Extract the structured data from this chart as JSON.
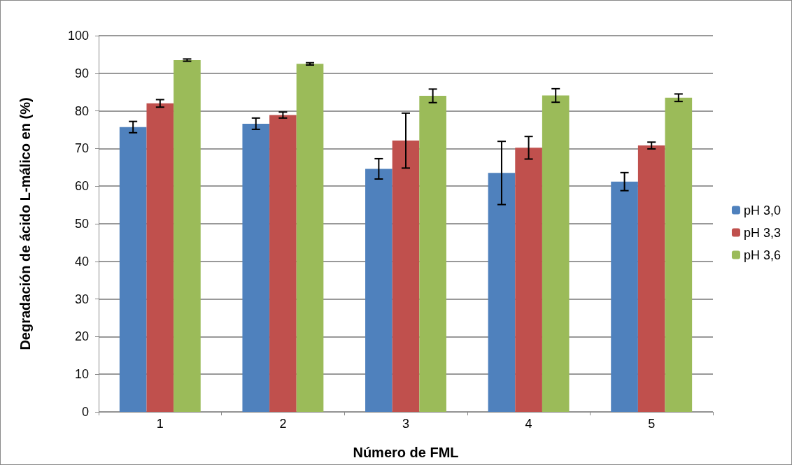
{
  "chart_data": {
    "type": "bar",
    "xlabel": "Número de FML",
    "ylabel": "Degradación de ácido L-málico en (%)",
    "categories": [
      "1",
      "2",
      "3",
      "4",
      "5"
    ],
    "series": [
      {
        "name": "pH 3,0",
        "color": "#4f81bd",
        "values": [
          75.7,
          76.6,
          64.6,
          63.5,
          61.2
        ],
        "errors": [
          1.5,
          1.5,
          2.7,
          8.4,
          2.4
        ]
      },
      {
        "name": "pH 3,3",
        "color": "#c0504d",
        "values": [
          82,
          78.9,
          72.1,
          70.2,
          70.8
        ],
        "errors": [
          1,
          0.8,
          7.3,
          3,
          0.9
        ]
      },
      {
        "name": "pH 3,6",
        "color": "#9bbb59",
        "values": [
          93.5,
          92.5,
          84,
          84.1,
          83.5
        ],
        "errors": [
          0.3,
          0.3,
          1.8,
          1.8,
          1
        ]
      }
    ],
    "ylim": [
      0,
      100
    ],
    "yticks": [
      0,
      10,
      20,
      30,
      40,
      50,
      60,
      70,
      80,
      90,
      100
    ],
    "grid": "y",
    "legend": "right"
  }
}
